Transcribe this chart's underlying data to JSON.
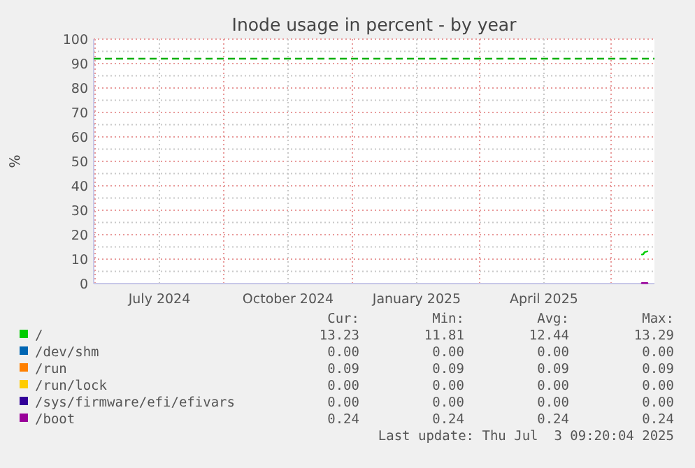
{
  "chart_data": {
    "type": "line",
    "title": "Inode usage in percent - by year",
    "ylabel": "%",
    "xlim": [
      "2024-06-02",
      "2025-07-08"
    ],
    "xticks": [
      {
        "value": "2024-06-03",
        "label": null
      },
      {
        "value": "2024-07-19",
        "label": "July 2024"
      },
      {
        "value": "2024-09-03",
        "label": null
      },
      {
        "value": "2024-10-19",
        "label": "October 2024"
      },
      {
        "value": "2024-12-04",
        "label": null
      },
      {
        "value": "2025-01-19",
        "label": "January 2025"
      },
      {
        "value": "2025-03-05",
        "label": null
      },
      {
        "value": "2025-04-20",
        "label": "April 2025"
      },
      {
        "value": "2025-06-07",
        "label": null
      }
    ],
    "ylim": [
      0,
      100
    ],
    "yticks": [
      0,
      10,
      20,
      30,
      40,
      50,
      60,
      70,
      80,
      90,
      100
    ],
    "grid": true,
    "legend": "bottom",
    "ref_lines": [
      {
        "axis": "y",
        "value": 92,
        "label": null,
        "color": "#00b000",
        "line_style": "dashed"
      }
    ],
    "series": [
      {
        "name": "/",
        "color": "#00cc00",
        "x": [
          "2025-06-29",
          "2025-06-30",
          "2025-07-01",
          "2025-07-03"
        ],
        "values": [
          11.9,
          12.0,
          12.9,
          13.2
        ]
      },
      {
        "name": "/dev/shm",
        "color": "#0066b3"
      },
      {
        "name": "/run",
        "color": "#ff8000"
      },
      {
        "name": "/run/lock",
        "color": "#ffcc00"
      },
      {
        "name": "/sys/firmware/efi/efivars",
        "color": "#330099"
      },
      {
        "name": "/boot",
        "color": "#990099",
        "x": [
          "2025-06-29",
          "2025-07-03"
        ],
        "values": [
          0.2,
          0.2
        ]
      }
    ],
    "annotations": [
      "Cur:",
      "Min:",
      "Avg:",
      "Max:",
      "13.23",
      "11.81",
      "12.44",
      "13.29",
      "0.00",
      "0.00",
      "0.00",
      "0.00",
      "0.09",
      "0.09",
      "0.09",
      "0.09",
      "0.00",
      "0.00",
      "0.00",
      "0.00",
      "0.00",
      "0.00",
      "0.00",
      "0.00",
      "0.24",
      "0.24",
      "0.24",
      "0.24",
      "Last update: Thu Jul  3 09:20:04 2025"
    ]
  }
}
